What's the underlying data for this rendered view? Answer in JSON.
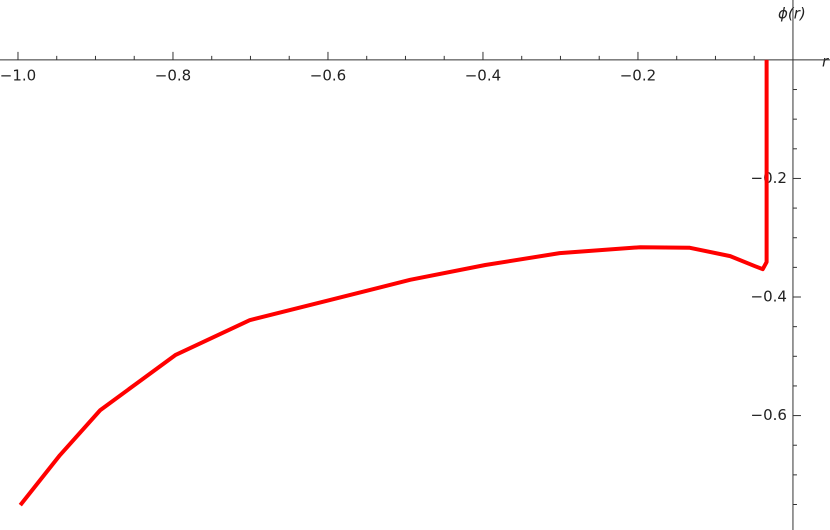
{
  "chart_data": {
    "type": "line",
    "xlabel": "r",
    "ylabel": "ϕ(r)",
    "xlim": [
      -1.0232,
      0.0478
    ],
    "ylim": [
      -0.793,
      0.101
    ],
    "xticks": [
      {
        "value": -1.0,
        "label": "−1.0"
      },
      {
        "value": -0.8,
        "label": "−0.8"
      },
      {
        "value": -0.6,
        "label": "−0.6"
      },
      {
        "value": -0.4,
        "label": "−0.4"
      },
      {
        "value": -0.2,
        "label": "−0.2"
      }
    ],
    "yticks": [
      {
        "value": -0.2,
        "label": "−0.2"
      },
      {
        "value": -0.4,
        "label": "−0.4"
      },
      {
        "value": -0.6,
        "label": "−0.6"
      }
    ],
    "xminorticks": [
      -0.95,
      -0.9,
      -0.85,
      -0.75,
      -0.7,
      -0.65,
      -0.55,
      -0.5,
      -0.45,
      -0.35,
      -0.3,
      -0.25,
      -0.15,
      -0.1,
      -0.05
    ],
    "yminorticks": [
      -0.05,
      -0.1,
      -0.15,
      -0.25,
      -0.3,
      -0.35,
      -0.45,
      -0.5,
      -0.55,
      -0.65,
      -0.7,
      -0.75
    ],
    "series": [
      {
        "color": "#ff0000",
        "x": [
          -0.997,
          -0.946,
          -0.894,
          -0.797,
          -0.701,
          -0.597,
          -0.494,
          -0.397,
          -0.301,
          -0.197,
          -0.133,
          -0.081,
          -0.049,
          -0.039,
          -0.034,
          -0.034
        ],
        "values": [
          -0.751,
          -0.667,
          -0.591,
          -0.498,
          -0.439,
          -0.405,
          -0.371,
          -0.346,
          -0.326,
          -0.316,
          -0.317,
          -0.331,
          -0.348,
          -0.353,
          -0.341,
          0.0
        ]
      }
    ]
  }
}
